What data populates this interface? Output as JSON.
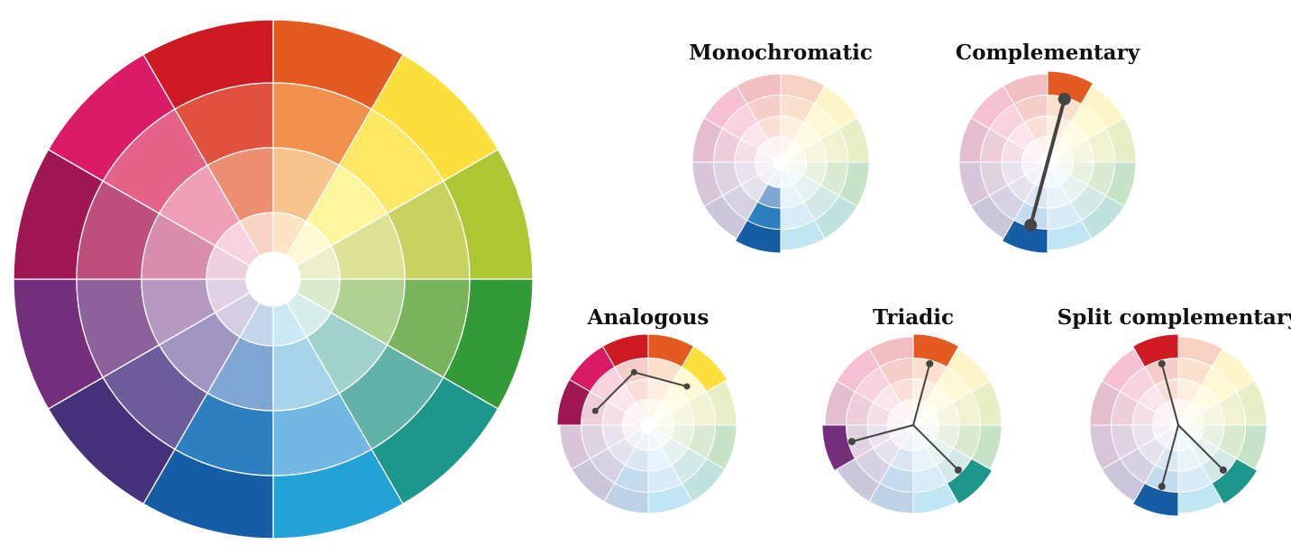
{
  "main_wheel": {
    "hues": [
      "#E45B22",
      "#FCDF3C",
      "#AEC634",
      "#329A37",
      "#1D968C",
      "#24A1D6",
      "#155DA5",
      "#45327A",
      "#742F7C",
      "#9E1753",
      "#DC1B67",
      "#CE1A22"
    ],
    "rings": [
      [
        "#F2914E",
        "#FDE866",
        "#C9D260",
        "#79B35B",
        "#62B2AA",
        "#72B8E2",
        "#2E7FBF",
        "#6D5C9B",
        "#8D6199",
        "#BD4F7C",
        "#E56288",
        "#E0513E"
      ],
      [
        "#F8C48D",
        "#FEF59C",
        "#DEE295",
        "#AFD292",
        "#A1D1CB",
        "#A7D4EA",
        "#80A7D3",
        "#A196C1",
        "#B599C1",
        "#D88DAA",
        "#EFA0B8",
        "#EC8E71"
      ],
      [
        "#FDE4C4",
        "#FFFAD4",
        "#EDEFCA",
        "#DAEBCD",
        "#D6EDEA",
        "#CBE8F5",
        "#C3D4EB",
        "#D4CEE5",
        "#E0D2E5",
        "#EDCFDD",
        "#F7D3E0",
        "#F8D2C3"
      ]
    ]
  },
  "schemes": [
    {
      "title": "Monochromatic",
      "highlight": [
        [
          6,
          0
        ],
        [
          6,
          1
        ],
        [
          6,
          2
        ]
      ],
      "points": [],
      "lines": []
    },
    {
      "title": "Complementary",
      "highlight": [
        [
          0,
          0
        ],
        [
          6,
          0
        ]
      ],
      "points": [
        [
          0,
          0.74,
          7
        ],
        [
          6,
          0.74,
          7
        ]
      ],
      "lines": [
        [
          0,
          1
        ]
      ]
    },
    {
      "title": "Analogous",
      "highlight": [
        [
          1,
          0
        ],
        [
          0,
          0
        ],
        [
          11,
          0
        ],
        [
          10,
          0
        ],
        [
          9,
          0
        ]
      ],
      "points": [
        [
          1,
          0.62,
          3.5
        ],
        [
          11,
          0.62,
          3.5
        ],
        [
          9,
          0.62,
          3.5
        ]
      ],
      "lines": [
        [
          0,
          1
        ],
        [
          1,
          2
        ]
      ]
    },
    {
      "title": "Triadic",
      "highlight": [
        [
          0,
          0
        ],
        [
          4,
          0
        ],
        [
          8,
          0
        ]
      ],
      "points": [
        [
          0,
          0.72,
          4
        ],
        [
          4,
          0.72,
          4
        ],
        [
          8,
          0.72,
          4
        ]
      ],
      "lines": [
        [
          "c",
          0
        ],
        [
          "c",
          1
        ],
        [
          "c",
          2
        ]
      ]
    },
    {
      "title": "Split complementary",
      "highlight": [
        [
          11,
          0
        ],
        [
          4,
          0
        ],
        [
          6,
          0
        ]
      ],
      "points": [
        [
          11,
          0.72,
          4
        ],
        [
          4,
          0.72,
          4
        ],
        [
          6,
          0.72,
          4
        ]
      ],
      "lines": [
        [
          "c",
          0
        ],
        [
          "c",
          1
        ],
        [
          "c",
          2
        ]
      ]
    }
  ]
}
